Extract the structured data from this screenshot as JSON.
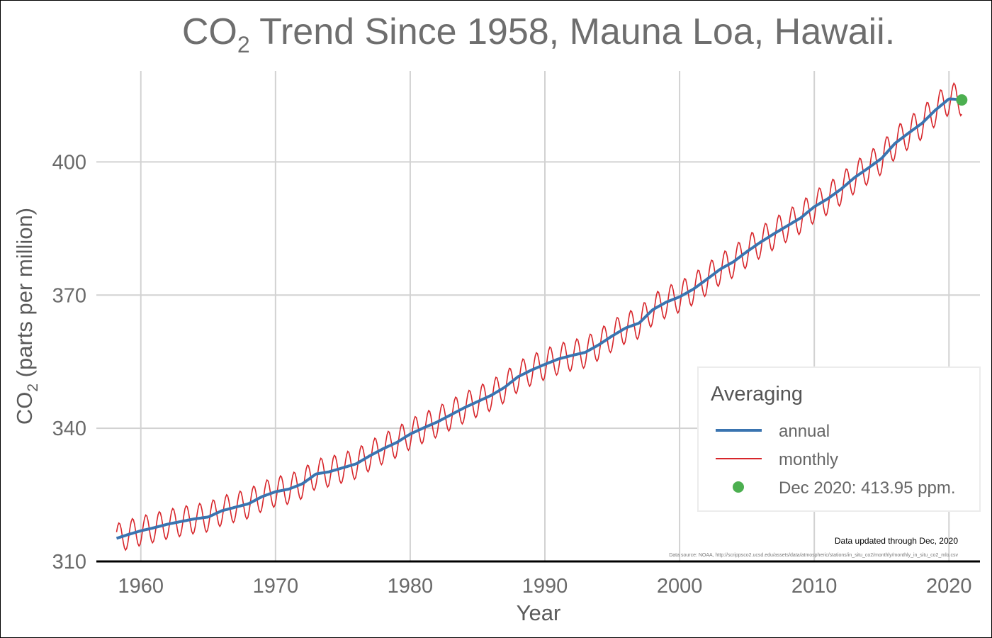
{
  "chart_data": {
    "type": "line",
    "title": {
      "prefix": "CO",
      "subscript": "2",
      "suffix": " Trend Since 1958, Mauna Loa, Hawaii."
    },
    "xlabel": "Year",
    "ylabel": {
      "prefix": "CO",
      "subscript": "2",
      "suffix": " (parts per million)"
    },
    "xlim": [
      1956.7,
      2022.3
    ],
    "ylim": [
      310,
      420.5
    ],
    "x_ticks": [
      1960,
      1970,
      1980,
      1990,
      2000,
      2010,
      2020
    ],
    "y_ticks": [
      310,
      340,
      370,
      400
    ],
    "grid": true,
    "legend_position": "bottom-right",
    "legend": {
      "title": "Averaging",
      "entries": [
        {
          "label": "annual",
          "color": "#3a74b0",
          "kind": "line"
        },
        {
          "label": "monthly",
          "color": "#d7262b",
          "kind": "line"
        },
        {
          "label": "Dec 2020: 413.95 ppm.",
          "color": "#4caf50",
          "kind": "point"
        }
      ]
    },
    "series": [
      {
        "name": "annual",
        "color": "#3a74b0",
        "x": [
          1958.2,
          1959,
          1960,
          1961,
          1962,
          1963,
          1964,
          1965,
          1966,
          1967,
          1968,
          1969,
          1970,
          1971,
          1972,
          1973,
          1974,
          1975,
          1976,
          1977,
          1978,
          1979,
          1980,
          1981,
          1982,
          1983,
          1984,
          1985,
          1986,
          1987,
          1988,
          1989,
          1990,
          1991,
          1992,
          1993,
          1994,
          1995,
          1996,
          1997,
          1998,
          1999,
          2000,
          2001,
          2002,
          2003,
          2004,
          2005,
          2006,
          2007,
          2008,
          2009,
          2010,
          2011,
          2012,
          2013,
          2014,
          2015,
          2016,
          2017,
          2018,
          2019,
          2020,
          2020.95
        ],
        "values": [
          315.2,
          316.0,
          316.9,
          317.6,
          318.4,
          319.0,
          319.6,
          320.0,
          321.4,
          322.2,
          323.0,
          324.6,
          325.7,
          326.3,
          327.5,
          329.7,
          330.2,
          331.1,
          332.0,
          333.8,
          335.4,
          336.8,
          338.7,
          340.1,
          341.4,
          343.0,
          344.6,
          346.0,
          347.4,
          349.2,
          351.6,
          353.1,
          354.4,
          355.6,
          356.4,
          357.1,
          358.8,
          360.8,
          362.6,
          363.7,
          366.7,
          368.4,
          369.6,
          371.3,
          373.5,
          375.8,
          377.5,
          379.8,
          381.9,
          383.8,
          385.6,
          387.4,
          389.9,
          391.7,
          393.9,
          396.5,
          398.6,
          400.8,
          404.2,
          406.5,
          408.7,
          411.7,
          414.2,
          414.0
        ]
      },
      {
        "name": "monthly",
        "color": "#d7262b",
        "seasonal_amplitude_ppm": [
          3.3,
          3.6
        ]
      }
    ],
    "highlight": {
      "x": 2020.95,
      "y": 413.95,
      "label": "Dec 2020: 413.95 ppm.",
      "color": "#4caf50"
    },
    "annotation": "Data updated through Dec, 2020",
    "source": "Data source: NOAA, http://scrippsco2.ucsd.edu/assets/data/atmospheric/stations/in_situ_co2/monthly/monthly_in_situ_co2_mlo.csv"
  }
}
